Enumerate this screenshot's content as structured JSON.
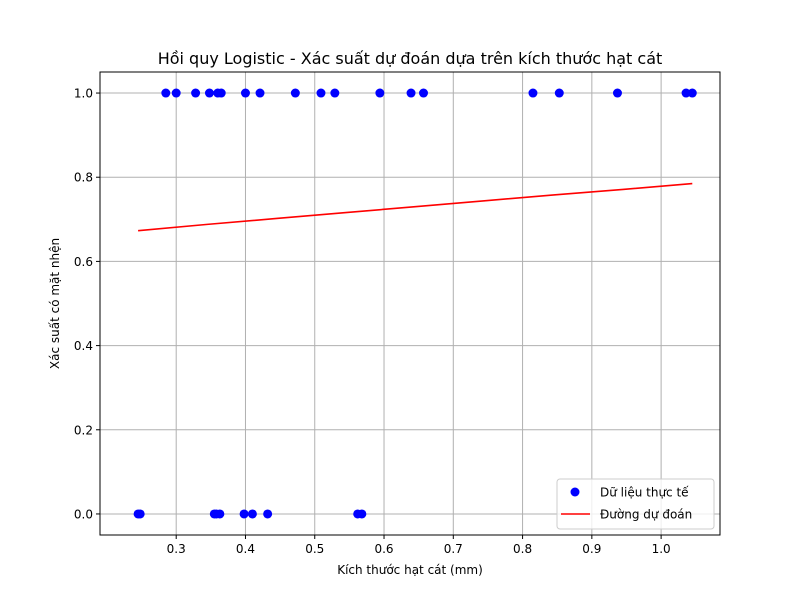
{
  "chart_data": {
    "type": "scatter",
    "title": "Hồi quy Logistic - Xác suất dự đoán dựa trên kích thước hạt cát",
    "xlabel": "Kích thước hạt cát (mm)",
    "ylabel": "Xác suất có mặt nhện",
    "xlim": [
      0.19,
      1.085
    ],
    "ylim": [
      -0.05,
      1.05
    ],
    "xticks": [
      0.3,
      0.4,
      0.5,
      0.6,
      0.7,
      0.8,
      0.9,
      1.0
    ],
    "xtick_labels": [
      "0.3",
      "0.4",
      "0.5",
      "0.6",
      "0.7",
      "0.8",
      "0.9",
      "1.0"
    ],
    "yticks": [
      0.0,
      0.2,
      0.4,
      0.6,
      0.8,
      1.0
    ],
    "ytick_labels": [
      "0.0",
      "0.2",
      "0.4",
      "0.6",
      "0.8",
      "1.0"
    ],
    "grid": true,
    "legend_position": "lower-right",
    "series": [
      {
        "name": "Dữ liệu thực tế",
        "kind": "scatter",
        "color": "#0000ff",
        "points": [
          {
            "x": 0.245,
            "y": 0
          },
          {
            "x": 0.248,
            "y": 0
          },
          {
            "x": 0.285,
            "y": 1
          },
          {
            "x": 0.3,
            "y": 1
          },
          {
            "x": 0.328,
            "y": 1
          },
          {
            "x": 0.348,
            "y": 1
          },
          {
            "x": 0.355,
            "y": 0
          },
          {
            "x": 0.358,
            "y": 0
          },
          {
            "x": 0.36,
            "y": 1
          },
          {
            "x": 0.363,
            "y": 0
          },
          {
            "x": 0.365,
            "y": 1
          },
          {
            "x": 0.398,
            "y": 0
          },
          {
            "x": 0.4,
            "y": 1
          },
          {
            "x": 0.41,
            "y": 0
          },
          {
            "x": 0.421,
            "y": 1
          },
          {
            "x": 0.432,
            "y": 0
          },
          {
            "x": 0.472,
            "y": 1
          },
          {
            "x": 0.509,
            "y": 1
          },
          {
            "x": 0.529,
            "y": 1
          },
          {
            "x": 0.562,
            "y": 0
          },
          {
            "x": 0.568,
            "y": 0
          },
          {
            "x": 0.594,
            "y": 1
          },
          {
            "x": 0.639,
            "y": 1
          },
          {
            "x": 0.657,
            "y": 1
          },
          {
            "x": 0.815,
            "y": 1
          },
          {
            "x": 0.853,
            "y": 1
          },
          {
            "x": 0.937,
            "y": 1
          },
          {
            "x": 1.036,
            "y": 1
          },
          {
            "x": 1.045,
            "y": 1
          }
        ]
      },
      {
        "name": "Đường dự đoán",
        "kind": "line",
        "color": "#ff0000",
        "x": [
          0.245,
          0.345,
          0.445,
          0.545,
          0.645,
          0.745,
          0.845,
          0.945,
          1.045
        ],
        "y": [
          0.673,
          0.688,
          0.702,
          0.716,
          0.73,
          0.744,
          0.758,
          0.771,
          0.785
        ]
      }
    ]
  }
}
